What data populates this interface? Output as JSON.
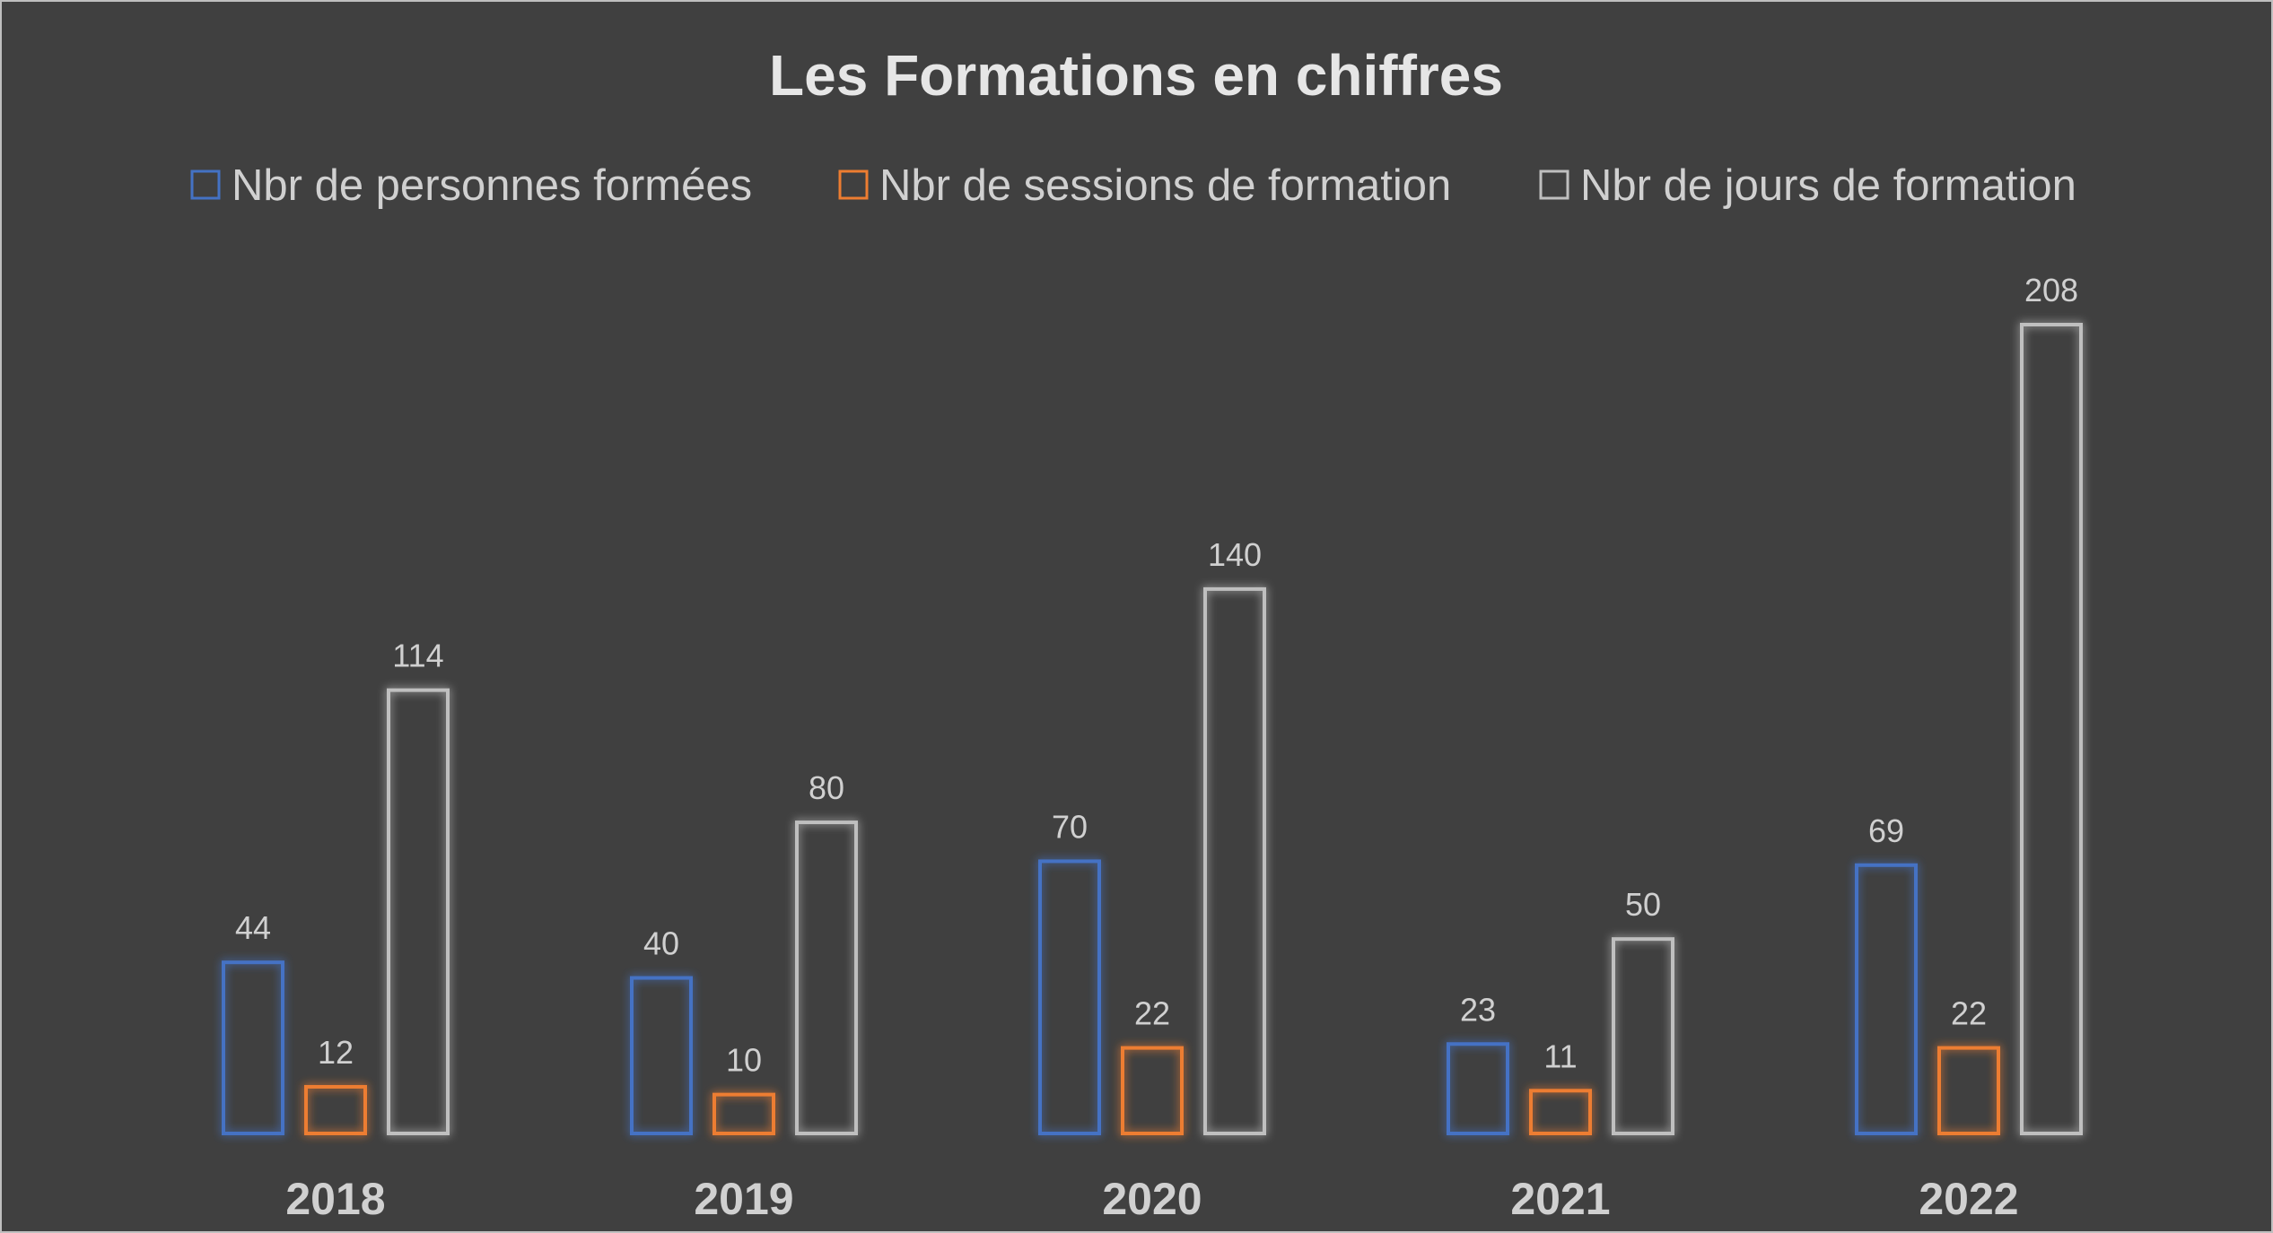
{
  "chart_data": {
    "type": "bar",
    "title": "Les Formations en chiffres",
    "xlabel": "",
    "ylabel": "",
    "ylim": [
      0,
      208
    ],
    "grid": false,
    "legend_position": "top",
    "categories": [
      "2018",
      "2019",
      "2020",
      "2021",
      "2022"
    ],
    "series": [
      {
        "name": "Nbr de personnes formées",
        "color": "#4472c4",
        "values": [
          44,
          40,
          70,
          23,
          69
        ]
      },
      {
        "name": "Nbr de sessions de formation",
        "color": "#ed7d31",
        "values": [
          12,
          10,
          22,
          11,
          22
        ]
      },
      {
        "name": "Nbr de jours de formation",
        "color": "#bfbfbf",
        "values": [
          114,
          80,
          140,
          50,
          208
        ]
      }
    ]
  },
  "colors": {
    "background": "#404040",
    "text": "#d0d0d0"
  }
}
